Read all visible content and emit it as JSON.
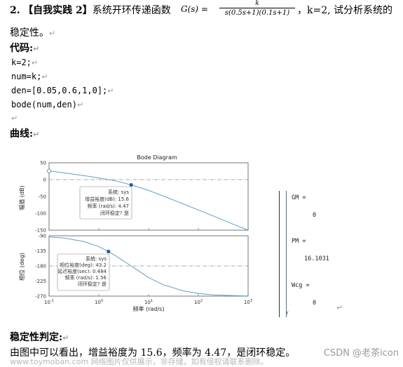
{
  "problem": {
    "number": "2.",
    "title": "【自我实践 2】",
    "lead": "系统开环传递函数",
    "tf_lhs": "G(s) =",
    "tf_num": "k",
    "tf_den": "s(0.5s+1)(0.1s+1)",
    "after": "，k=2, 试分析系统的",
    "line2": "稳定性。"
  },
  "code_label": "代码:",
  "code_lines": [
    "k=2;",
    "num=k;",
    "den=[0.05,0.6,1,0];",
    "bode(num,den)"
  ],
  "curve_label": "曲线:",
  "bode": {
    "title": "Bode Diagram",
    "mag_ylabel": "幅值 (dB)",
    "phase_ylabel": "相位 (deg)",
    "xlabel": "频率 (rad/s)",
    "mag_ticks": [
      "50",
      "0",
      "-50",
      "-100",
      "-150"
    ],
    "phase_ticks": [
      "-90",
      "-135",
      "-180",
      "-225",
      "-270"
    ],
    "x_ticks": [
      "10",
      "10",
      "10",
      "10",
      "10"
    ],
    "x_exps": [
      "-1",
      "0",
      "1",
      "2",
      "3"
    ],
    "mag_tip": [
      "系统: sys",
      "增益裕度(dB): 15.6",
      "频率 (rad/s): 4.47",
      "闭环稳定? 是"
    ],
    "phase_tip": [
      "系统: sys",
      "相位裕度(deg): 43.2",
      "延迟裕度(sec): 0.484",
      "频率 (rad/s): 1.56",
      "闭环稳定? 是"
    ]
  },
  "chart_data": {
    "type": "line",
    "title": "Bode Diagram",
    "xlabel": "频率 (rad/s)",
    "x_scale": "log",
    "xlim": [
      0.1,
      1000
    ],
    "panels": [
      {
        "ylabel": "幅值 (dB)",
        "ylim": [
          -150,
          50
        ],
        "series": [
          {
            "x": [
              0.1,
              0.2,
              0.5,
              1,
              2,
              4.47,
              10,
              20,
              50,
              100,
              200,
              500,
              1000
            ],
            "y": [
              26,
              20,
              12,
              5.1,
              -2.5,
              -15.6,
              -32,
              -49,
              -72,
              -90,
              -108,
              -132,
              -150
            ]
          }
        ],
        "marker": {
          "x": 4.47,
          "y": -15.6
        }
      },
      {
        "ylabel": "相位 (deg)",
        "ylim": [
          -270,
          -90
        ],
        "series": [
          {
            "x": [
              0.1,
              0.2,
              0.5,
              1,
              1.56,
              2,
              4.47,
              10,
              20,
              50,
              100,
              200,
              500,
              1000
            ],
            "y": [
              -93.4,
              -96.9,
              -106.9,
              -122.3,
              -136.8,
              -146.4,
              -180,
              -214.7,
              -236.3,
              -254.3,
              -262.3,
              -266.2,
              -268.6,
              -269.3
            ]
          }
        ],
        "marker": {
          "x": 1.56,
          "y": -136.8
        }
      }
    ]
  },
  "matlab_panel": {
    "gm_label": "GM =",
    "gm_value": "0",
    "pm_label": "PM =",
    "pm_value": "16.1031",
    "wcg_label": "Wcg =",
    "wcg_value": "0",
    "fx": "fx"
  },
  "judgement_label": "稳定性判定:",
  "conclusion": "由图中可以看出，增益裕度为 15.6，频率为 4.47，是闭环稳定。",
  "watermark": "www.toymoban.com 网络图片仅供展示，非存储，如有侵权请联系删除。",
  "corner_mark": "CSDN @老茶icon",
  "return_mark": "↵",
  "colors": {
    "curve": "#5f9fc6",
    "marker": "#1f5f9f",
    "dash": "#8a8a8a"
  }
}
